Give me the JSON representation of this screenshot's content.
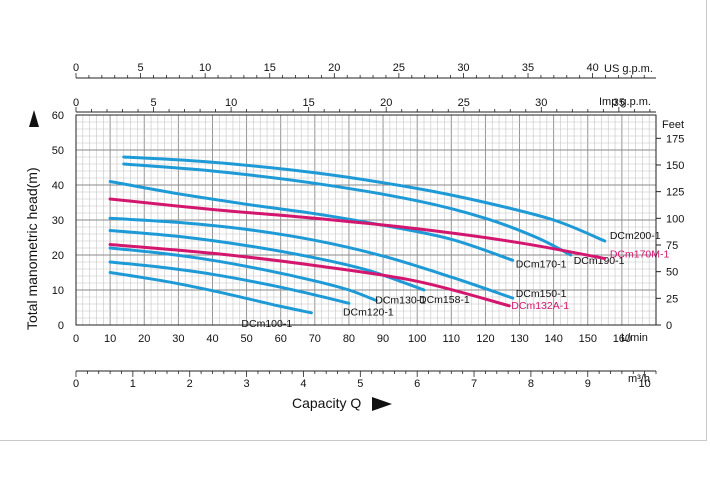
{
  "chart_data": {
    "type": "line",
    "title": "",
    "xlabel": "Capacity Q",
    "ylabel": "Total manometric head(m)",
    "x_unit_lpm": "L/min",
    "x_unit_m3h": "m³/h",
    "x_unit_usgpm": "US g.p.m.",
    "x_unit_impgpm": "Imp g.p.m.",
    "y_unit_feet": "Feet",
    "xlim_lpm": [
      0,
      170
    ],
    "ylim_m": [
      0,
      60
    ],
    "grid": true,
    "ticks_lpm": [
      "0",
      "10",
      "20",
      "30",
      "40",
      "50",
      "60",
      "70",
      "80",
      "90",
      "100",
      "110",
      "120",
      "130",
      "140",
      "150",
      "160"
    ],
    "ticks_m3h": [
      "0",
      "1",
      "2",
      "3",
      "4",
      "5",
      "6",
      "7",
      "8",
      "9",
      "10"
    ],
    "ticks_usgpm": [
      "0",
      "5",
      "10",
      "15",
      "20",
      "25",
      "30",
      "35",
      "40"
    ],
    "ticks_impgpm": [
      "0",
      "5",
      "10",
      "15",
      "20",
      "25",
      "30",
      "35"
    ],
    "ticks_m": [
      "0",
      "10",
      "20",
      "30",
      "40",
      "50",
      "60"
    ],
    "ticks_feet": [
      "0",
      "25",
      "50",
      "75",
      "100",
      "125",
      "150",
      "175"
    ],
    "series": [
      {
        "name": "DCm100-1",
        "color": "#1e9ad6",
        "points": [
          [
            10,
            15
          ],
          [
            20,
            13.5
          ],
          [
            30,
            11.8
          ],
          [
            40,
            9.8
          ],
          [
            50,
            7.6
          ],
          [
            60,
            5.3
          ],
          [
            69,
            3.5
          ]
        ]
      },
      {
        "name": "DCm120-1",
        "color": "#1e9ad6",
        "points": [
          [
            10,
            18
          ],
          [
            25,
            16.5
          ],
          [
            40,
            14.5
          ],
          [
            55,
            11.8
          ],
          [
            70,
            8.6
          ],
          [
            80,
            6.2
          ]
        ]
      },
      {
        "name": "DCm130-1",
        "color": "#1e9ad6",
        "points": [
          [
            10,
            22
          ],
          [
            25,
            20.5
          ],
          [
            40,
            18.5
          ],
          [
            55,
            15.8
          ],
          [
            70,
            12.6
          ],
          [
            80,
            10
          ],
          [
            88,
            7
          ]
        ]
      },
      {
        "name": "DCm158-1",
        "color": "#1e9ad6",
        "points": [
          [
            10,
            27
          ],
          [
            30,
            25.3
          ],
          [
            50,
            22.7
          ],
          [
            70,
            19.2
          ],
          [
            85,
            15.8
          ],
          [
            95,
            12.5
          ],
          [
            102,
            10
          ]
        ]
      },
      {
        "name": "DCm150-1",
        "color": "#1e9ad6",
        "points": [
          [
            10,
            30.5
          ],
          [
            30,
            29.3
          ],
          [
            50,
            27.3
          ],
          [
            70,
            24.2
          ],
          [
            90,
            19.7
          ],
          [
            110,
            13.7
          ],
          [
            128,
            7.7
          ]
        ]
      },
      {
        "name": "DCm170-1",
        "color": "#1e9ad6",
        "points": [
          [
            10,
            41
          ],
          [
            30,
            37.5
          ],
          [
            50,
            34.5
          ],
          [
            70,
            31.8
          ],
          [
            90,
            28.5
          ],
          [
            110,
            24.5
          ],
          [
            128,
            18.5
          ]
        ]
      },
      {
        "name": "DCm190-1",
        "color": "#1e9ad6",
        "points": [
          [
            14,
            46
          ],
          [
            40,
            44
          ],
          [
            70,
            40.5
          ],
          [
            100,
            35.5
          ],
          [
            120,
            30.5
          ],
          [
            135,
            25
          ],
          [
            145,
            20
          ]
        ]
      },
      {
        "name": "DCm200-1",
        "color": "#1e9ad6",
        "points": [
          [
            14,
            48
          ],
          [
            40,
            46.5
          ],
          [
            70,
            43.5
          ],
          [
            100,
            39
          ],
          [
            120,
            35
          ],
          [
            140,
            30
          ],
          [
            155,
            24
          ]
        ]
      },
      {
        "name": "DCm132A-1",
        "color": "#d4176e",
        "points": [
          [
            10,
            23
          ],
          [
            40,
            20.5
          ],
          [
            70,
            17
          ],
          [
            100,
            12.5
          ],
          [
            127,
            5.5
          ]
        ]
      },
      {
        "name": "DCm170M-1",
        "color": "#d4176e",
        "points": [
          [
            10,
            36
          ],
          [
            40,
            33
          ],
          [
            70,
            30.5
          ],
          [
            100,
            27.5
          ],
          [
            130,
            23.5
          ],
          [
            155,
            19
          ]
        ]
      }
    ]
  }
}
